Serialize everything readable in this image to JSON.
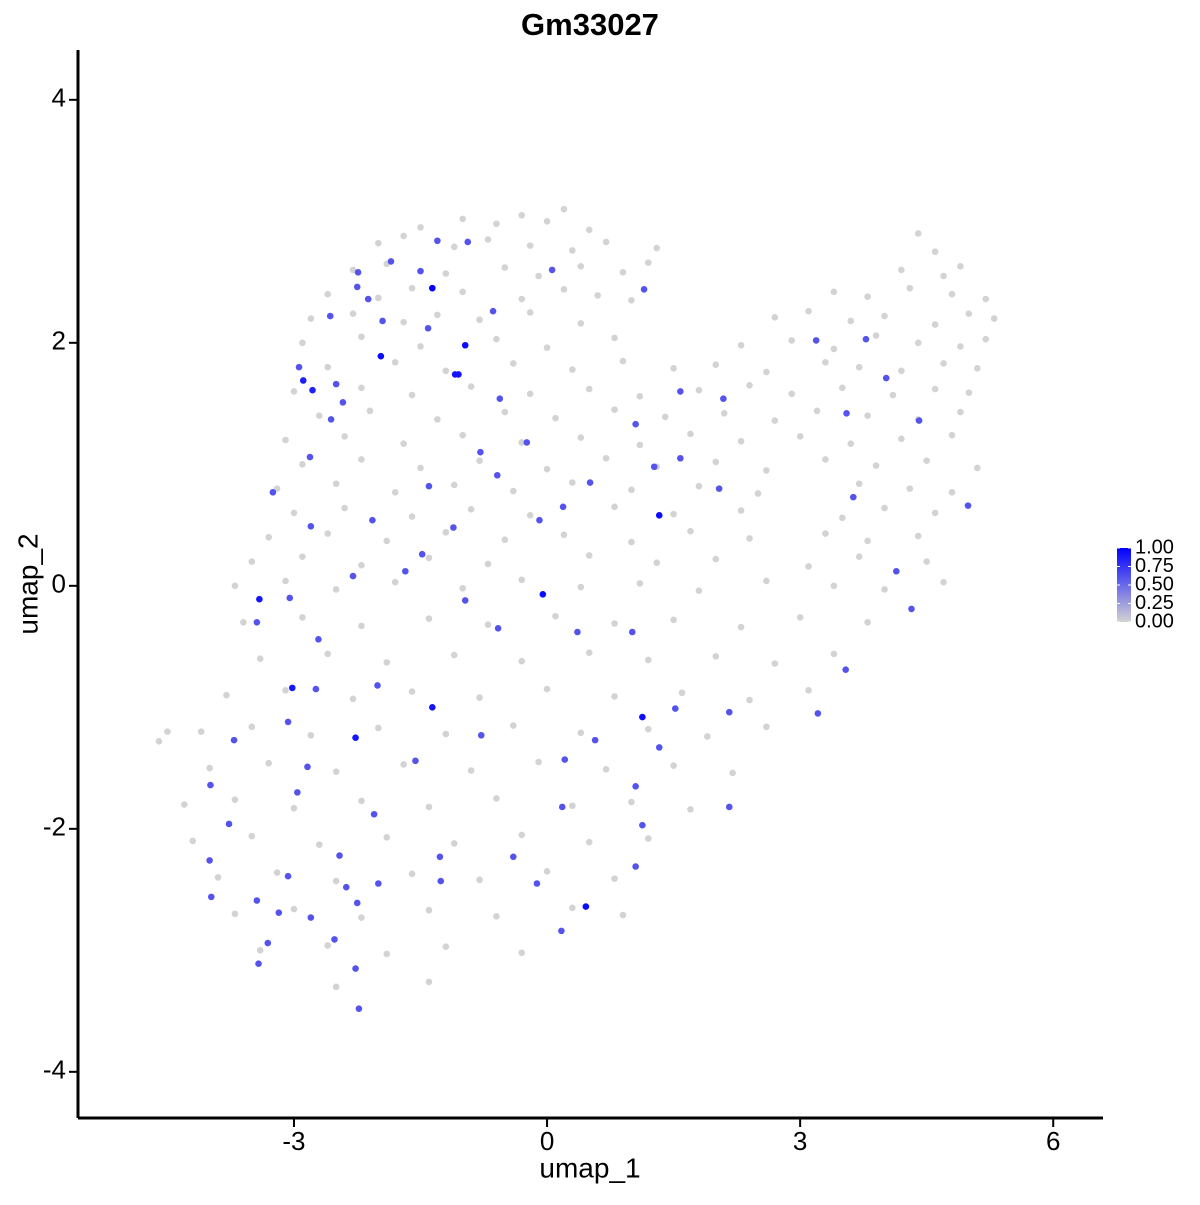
{
  "chart_data": {
    "type": "scatter",
    "title": "Gm33027",
    "x_label": "umap_1",
    "y_label": "umap_2",
    "xlim": [
      -5.56,
      6.59
    ],
    "ylim": [
      -4.38,
      4.41
    ],
    "xticks": [
      -3,
      0,
      3,
      6
    ],
    "yticks": [
      -4,
      -2,
      0,
      2,
      4
    ],
    "color_low": "#d3d3d3",
    "color_high": "#0000ff",
    "legend_lim": [
      0,
      1
    ],
    "legend_ticks": [
      {
        "value": 0,
        "label": "0.00"
      },
      {
        "value": 0.25,
        "label": "0.25"
      },
      {
        "value": 0.5,
        "label": "0.50"
      },
      {
        "value": 0.75,
        "label": "0.75"
      },
      {
        "value": 1,
        "label": "1.00"
      }
    ],
    "x": [
      -1.5,
      -1.0,
      -0.6,
      -0.3,
      0.0,
      0.2,
      0.5,
      -2.0,
      -1.7,
      -1.1,
      -0.7,
      -0.2,
      0.3,
      0.7,
      1.3,
      4.4,
      4.6,
      -2.3,
      -1.9,
      -1.2,
      -0.5,
      -0.1,
      0.4,
      0.9,
      1.2,
      4.2,
      4.7,
      4.9,
      -2.6,
      -2.0,
      -1.6,
      -1.0,
      -0.3,
      0.2,
      0.6,
      1.0,
      3.4,
      3.8,
      4.3,
      4.8,
      5.2,
      -2.8,
      -2.3,
      -1.7,
      -1.3,
      -0.8,
      -0.2,
      0.4,
      2.7,
      3.1,
      3.6,
      4.0,
      4.6,
      5.0,
      5.3,
      -2.9,
      -2.2,
      -1.5,
      -0.6,
      0.0,
      0.8,
      2.3,
      2.9,
      3.4,
      3.9,
      4.4,
      4.9,
      5.2,
      -2.6,
      -1.8,
      -1.2,
      -0.4,
      0.3,
      0.9,
      1.5,
      2.0,
      2.6,
      3.3,
      3.7,
      4.2,
      4.7,
      5.1,
      -3.0,
      -2.2,
      -1.6,
      -0.9,
      -0.2,
      0.5,
      1.1,
      1.8,
      2.4,
      2.9,
      3.5,
      4.1,
      4.6,
      5.0,
      -2.7,
      -2.1,
      -1.3,
      -0.5,
      0.1,
      0.8,
      1.4,
      2.1,
      2.7,
      3.2,
      3.8,
      4.4,
      4.9,
      -3.1,
      -2.4,
      -1.7,
      -1.0,
      -0.3,
      0.4,
      1.1,
      1.7,
      2.3,
      3.0,
      3.6,
      4.2,
      4.8,
      -2.9,
      -2.2,
      -1.5,
      -0.8,
      0.0,
      0.7,
      1.3,
      2.0,
      2.6,
      3.3,
      3.9,
      4.5,
      5.1,
      -3.2,
      -2.5,
      -1.8,
      -1.1,
      -0.4,
      0.3,
      1.0,
      1.8,
      2.5,
      3.7,
      4.3,
      4.8,
      -3.0,
      -2.4,
      -1.6,
      -0.9,
      -0.2,
      0.8,
      1.5,
      2.3,
      3.5,
      4.0,
      4.6,
      -3.3,
      -2.6,
      -1.9,
      -1.2,
      -0.5,
      0.2,
      1.0,
      1.7,
      2.4,
      3.3,
      3.8,
      4.4,
      -3.5,
      -2.9,
      -2.2,
      -1.4,
      -0.7,
      0.5,
      1.3,
      2.0,
      3.1,
      3.7,
      4.5,
      -3.7,
      -3.1,
      -2.5,
      -1.8,
      -1.0,
      -0.3,
      0.4,
      1.1,
      1.8,
      2.6,
      3.4,
      4.0,
      4.7,
      -3.6,
      -2.9,
      -2.2,
      -1.4,
      -0.7,
      0.1,
      0.8,
      1.5,
      2.3,
      3.0,
      3.8,
      -3.4,
      -2.6,
      -1.9,
      -1.1,
      -0.3,
      0.5,
      1.2,
      2.0,
      2.7,
      3.4,
      -3.8,
      -3.1,
      -2.3,
      -1.6,
      -0.8,
      0.0,
      0.8,
      1.6,
      2.4,
      3.1,
      -4.1,
      -3.5,
      -2.8,
      -2.0,
      -1.2,
      -0.4,
      0.4,
      1.2,
      1.9,
      2.6,
      -4.6,
      -4.5,
      -4.0,
      -3.3,
      -2.5,
      -1.7,
      -0.9,
      -0.1,
      0.7,
      1.5,
      2.2,
      -4.3,
      -3.7,
      -3.0,
      -2.2,
      -1.4,
      -0.6,
      0.3,
      1.0,
      1.7,
      -4.2,
      -3.5,
      -2.7,
      -1.9,
      -1.1,
      -0.3,
      0.5,
      1.2,
      -3.9,
      -3.2,
      -2.5,
      -1.6,
      -0.8,
      0.0,
      0.8,
      -3.7,
      -3.0,
      -2.2,
      -1.4,
      -0.6,
      0.3,
      0.9,
      -3.4,
      -2.6,
      -1.9,
      -1.2,
      -0.3,
      -2.5,
      -1.4,
      -1.3,
      -0.94,
      -1.5,
      -2.24,
      -1.85,
      -2.25,
      -2.12,
      -2.57,
      -1.95,
      -1.41,
      -2.94,
      -2.5,
      -2.42,
      -2.56,
      -2.81,
      -3.25,
      -2.8,
      -2.07,
      -0.64,
      -0.56,
      -0.24,
      -0.79,
      -0.59,
      -1.4,
      -1.11,
      -1.48,
      -0.09,
      0.19,
      0.51,
      0.06,
      1.15,
      1.05,
      1.27,
      1.58,
      1.58,
      2.09,
      2.04,
      3.19,
      3.78,
      4.02,
      3.55,
      3.63,
      4.41,
      4.99,
      4.14,
      4.32,
      3.54,
      3.21,
      2.16,
      2.16,
      1.52,
      1.01,
      0.36,
      -0.58,
      -0.97,
      -1.68,
      -2.3,
      -3.05,
      -3.44,
      -2.71,
      -2.74,
      -2.01,
      -3.07,
      -2.84,
      -3.71,
      -3.99,
      -3.77,
      -4.0,
      -3.98,
      -2.96,
      -3.44,
      -3.18,
      -3.42,
      -3.31,
      -2.8,
      -3.07,
      -2.46,
      -2.38,
      -2.25,
      -2.0,
      -2.52,
      -2.27,
      -2.23,
      -1.27,
      -1.26,
      -2.05,
      -1.56,
      -0.78,
      -0.4,
      -0.12,
      0.17,
      0.18,
      0.21,
      0.57,
      1.05,
      1.13,
      1.05,
      1.33,
      -1.36,
      -0.97,
      -1.97,
      -1.09,
      -1.05,
      -2.89,
      -2.78,
      -3.41,
      -0.05,
      1.33,
      -3.02,
      -1.36,
      -2.27,
      1.13,
      0.46
    ],
    "y": [
      2.95,
      3.02,
      2.98,
      3.05,
      3.0,
      3.1,
      2.93,
      2.82,
      2.88,
      2.79,
      2.85,
      2.8,
      2.76,
      2.83,
      2.78,
      2.9,
      2.75,
      2.6,
      2.65,
      2.57,
      2.62,
      2.55,
      2.63,
      2.58,
      2.66,
      2.6,
      2.55,
      2.63,
      2.4,
      2.37,
      2.45,
      2.42,
      2.36,
      2.44,
      2.39,
      2.35,
      2.42,
      2.38,
      2.45,
      2.4,
      2.36,
      2.2,
      2.24,
      2.17,
      2.23,
      2.19,
      2.25,
      2.16,
      2.21,
      2.26,
      2.18,
      2.22,
      2.15,
      2.24,
      2.2,
      2.0,
      2.05,
      1.97,
      2.03,
      1.96,
      2.04,
      1.98,
      2.02,
      1.95,
      2.06,
      2.0,
      1.97,
      2.03,
      1.8,
      1.84,
      1.77,
      1.83,
      1.78,
      1.85,
      1.79,
      1.82,
      1.76,
      1.84,
      1.8,
      1.77,
      1.83,
      1.79,
      1.6,
      1.63,
      1.57,
      1.64,
      1.58,
      1.62,
      1.56,
      1.61,
      1.65,
      1.58,
      1.63,
      1.57,
      1.62,
      1.59,
      1.4,
      1.44,
      1.37,
      1.43,
      1.38,
      1.45,
      1.39,
      1.42,
      1.36,
      1.44,
      1.4,
      1.37,
      1.43,
      1.2,
      1.23,
      1.17,
      1.24,
      1.18,
      1.22,
      1.16,
      1.25,
      1.19,
      1.23,
      1.17,
      1.21,
      1.24,
      1.0,
      1.04,
      0.97,
      1.03,
      0.96,
      1.05,
      0.98,
      1.02,
      0.95,
      1.04,
      0.99,
      1.03,
      0.97,
      0.8,
      0.84,
      0.77,
      0.83,
      0.78,
      0.85,
      0.79,
      0.82,
      0.76,
      0.84,
      0.8,
      0.77,
      0.6,
      0.64,
      0.57,
      0.63,
      0.58,
      0.65,
      0.59,
      0.62,
      0.56,
      0.64,
      0.6,
      0.4,
      0.43,
      0.37,
      0.44,
      0.38,
      0.42,
      0.36,
      0.45,
      0.39,
      0.43,
      0.37,
      0.41,
      0.2,
      0.24,
      0.17,
      0.23,
      0.18,
      0.25,
      0.19,
      0.22,
      0.16,
      0.24,
      0.2,
      0.0,
      0.04,
      -0.03,
      0.03,
      -0.02,
      0.05,
      -0.01,
      0.02,
      -0.04,
      0.04,
      0.0,
      -0.03,
      0.03,
      -0.3,
      -0.26,
      -0.33,
      -0.27,
      -0.32,
      -0.25,
      -0.31,
      -0.28,
      -0.34,
      -0.26,
      -0.3,
      -0.6,
      -0.56,
      -0.63,
      -0.57,
      -0.62,
      -0.55,
      -0.61,
      -0.58,
      -0.64,
      -0.56,
      -0.9,
      -0.86,
      -0.93,
      -0.87,
      -0.92,
      -0.85,
      -0.91,
      -0.88,
      -0.94,
      -0.86,
      -1.2,
      -1.16,
      -1.23,
      -1.17,
      -1.22,
      -1.15,
      -1.21,
      -1.18,
      -1.24,
      -1.16,
      -1.28,
      -1.2,
      -1.5,
      -1.46,
      -1.53,
      -1.47,
      -1.52,
      -1.45,
      -1.51,
      -1.48,
      -1.54,
      -1.8,
      -1.76,
      -1.83,
      -1.77,
      -1.82,
      -1.75,
      -1.81,
      -1.78,
      -1.84,
      -2.1,
      -2.06,
      -2.13,
      -2.07,
      -2.12,
      -2.05,
      -2.11,
      -2.08,
      -2.4,
      -2.36,
      -2.43,
      -2.37,
      -2.42,
      -2.35,
      -2.41,
      -2.7,
      -2.66,
      -2.73,
      -2.67,
      -2.72,
      -2.65,
      -2.71,
      -3.0,
      -2.96,
      -3.03,
      -2.97,
      -3.02,
      -3.3,
      -3.26,
      2.84,
      2.83,
      2.59,
      2.58,
      2.67,
      2.46,
      2.36,
      2.22,
      2.18,
      2.12,
      1.8,
      1.66,
      1.51,
      1.37,
      1.06,
      0.77,
      0.49,
      0.54,
      2.26,
      1.54,
      1.18,
      1.1,
      0.91,
      0.82,
      0.48,
      0.26,
      0.54,
      0.65,
      0.85,
      2.6,
      2.44,
      1.33,
      0.98,
      1.6,
      1.05,
      1.54,
      0.8,
      2.02,
      2.03,
      1.71,
      1.42,
      0.73,
      1.36,
      0.66,
      0.12,
      -0.19,
      -0.69,
      -1.05,
      -1.04,
      -1.82,
      -1.01,
      -0.38,
      -0.38,
      -0.35,
      -0.12,
      0.12,
      0.08,
      -0.1,
      -0.3,
      -0.44,
      -0.85,
      -0.82,
      -1.12,
      -1.49,
      -1.27,
      -1.64,
      -1.96,
      -2.26,
      -2.56,
      -1.7,
      -2.59,
      -2.69,
      -3.11,
      -2.94,
      -2.73,
      -2.39,
      -2.22,
      -2.48,
      -2.61,
      -2.45,
      -2.91,
      -3.15,
      -3.48,
      -2.23,
      -2.43,
      -1.88,
      -1.44,
      -1.23,
      -2.23,
      -2.45,
      -2.84,
      -1.82,
      -1.43,
      -1.27,
      -1.65,
      -1.97,
      -2.31,
      -1.33,
      2.45,
      1.98,
      1.89,
      1.74,
      1.74,
      1.69,
      1.61,
      -0.11,
      -0.07,
      0.58,
      -0.84,
      -1.0,
      -1.25,
      -1.08,
      -2.64
    ],
    "values": [
      0,
      0,
      0,
      0,
      0,
      0,
      0,
      0,
      0,
      0,
      0,
      0,
      0,
      0,
      0,
      0,
      0,
      0,
      0,
      0,
      0,
      0,
      0,
      0,
      0,
      0,
      0,
      0,
      0,
      0,
      0,
      0,
      0,
      0,
      0,
      0,
      0,
      0,
      0,
      0,
      0,
      0,
      0,
      0,
      0,
      0,
      0,
      0,
      0,
      0,
      0,
      0,
      0,
      0,
      0,
      0,
      0,
      0,
      0,
      0,
      0,
      0,
      0,
      0,
      0,
      0,
      0,
      0,
      0,
      0,
      0,
      0,
      0,
      0,
      0,
      0,
      0,
      0,
      0,
      0,
      0,
      0,
      0,
      0,
      0,
      0,
      0,
      0,
      0,
      0,
      0,
      0,
      0,
      0,
      0,
      0,
      0,
      0,
      0,
      0,
      0,
      0,
      0,
      0,
      0,
      0,
      0,
      0,
      0,
      0,
      0,
      0,
      0,
      0,
      0,
      0,
      0,
      0,
      0,
      0,
      0,
      0,
      0,
      0,
      0,
      0,
      0,
      0,
      0,
      0,
      0,
      0,
      0,
      0,
      0,
      0,
      0,
      0,
      0,
      0,
      0,
      0,
      0,
      0,
      0,
      0,
      0,
      0,
      0,
      0,
      0,
      0,
      0,
      0,
      0,
      0,
      0,
      0,
      0,
      0,
      0,
      0,
      0,
      0,
      0,
      0,
      0,
      0,
      0,
      0,
      0,
      0,
      0,
      0,
      0,
      0,
      0,
      0,
      0,
      0,
      0,
      0,
      0,
      0,
      0,
      0,
      0,
      0,
      0,
      0,
      0,
      0,
      0,
      0,
      0,
      0,
      0,
      0,
      0,
      0,
      0,
      0,
      0,
      0,
      0,
      0,
      0,
      0,
      0,
      0,
      0,
      0,
      0,
      0,
      0,
      0,
      0,
      0,
      0,
      0,
      0,
      0,
      0,
      0,
      0,
      0,
      0,
      0,
      0,
      0,
      0,
      0,
      0,
      0,
      0,
      0,
      0,
      0,
      0,
      0,
      0,
      0,
      0,
      0,
      0,
      0,
      0,
      0,
      0,
      0,
      0,
      0,
      0,
      0,
      0,
      0,
      0,
      0,
      0,
      0,
      0,
      0,
      0,
      0,
      0,
      0,
      0,
      0,
      0,
      0,
      0,
      0,
      0,
      0,
      0,
      0,
      0,
      0,
      0,
      0,
      0,
      0,
      0,
      0,
      0.6,
      0.6,
      0.6,
      0.6,
      0.6,
      0.6,
      0.6,
      0.6,
      0.6,
      0.6,
      0.6,
      0.6,
      0.6,
      0.6,
      0.6,
      0.6,
      0.6,
      0.6,
      0.6,
      0.6,
      0.6,
      0.6,
      0.6,
      0.6,
      0.6,
      0.6,
      0.6,
      0.6,
      0.6,
      0.6,
      0.6,
      0.6,
      0.6,
      0.6,
      0.6,
      0.6,
      0.6,
      0.6,
      0.6,
      0.6,
      0.6,
      0.6,
      0.6,
      0.6,
      0.6,
      0.6,
      0.6,
      0.6,
      0.6,
      0.6,
      0.6,
      0.6,
      0.6,
      0.6,
      0.6,
      0.6,
      0.6,
      0.6,
      0.6,
      0.6,
      0.6,
      0.6,
      0.6,
      0.6,
      0.6,
      0.6,
      0.6,
      0.6,
      0.6,
      0.6,
      0.6,
      0.6,
      0.6,
      0.6,
      0.6,
      0.6,
      0.6,
      0.6,
      0.6,
      0.6,
      0.6,
      0.6,
      0.6,
      0.6,
      0.6,
      0.6,
      0.6,
      0.6,
      0.6,
      0.6,
      0.6,
      0.6,
      0.6,
      0.6,
      0.6,
      0.6,
      0.6,
      0.6,
      1.0,
      0.95,
      0.95,
      0.9,
      0.9,
      0.85,
      0.85,
      0.9,
      0.95,
      0.95,
      0.9,
      0.9,
      0.9,
      0.95,
      0.95
    ]
  }
}
